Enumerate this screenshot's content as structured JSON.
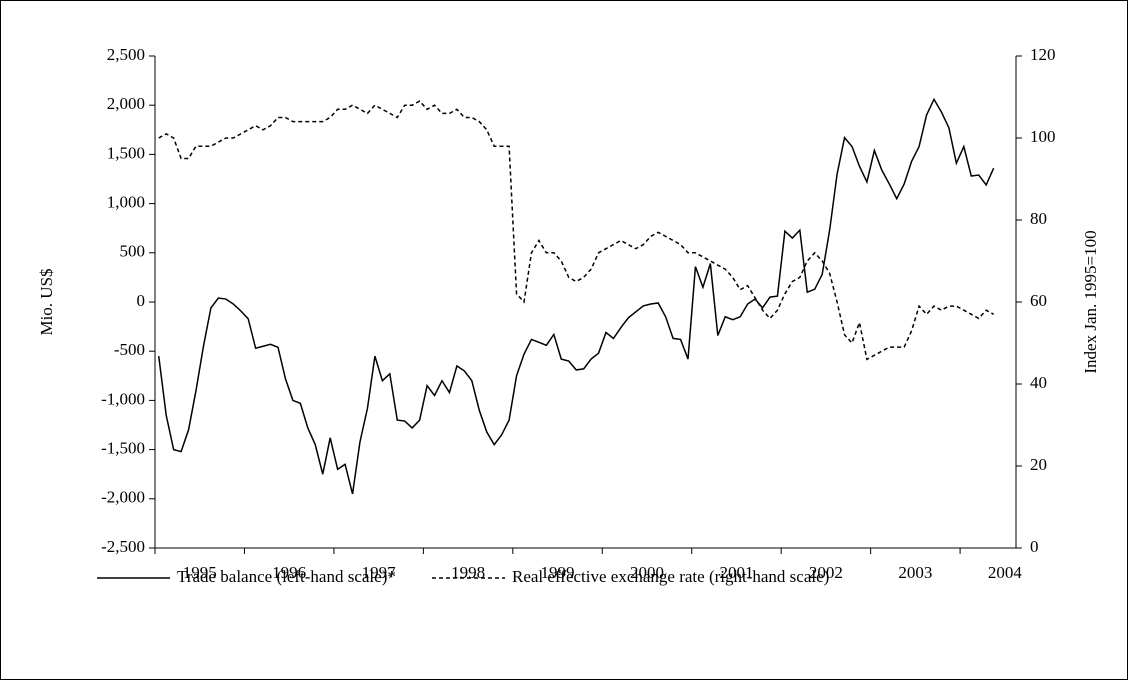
{
  "chart_data": {
    "type": "line",
    "y_label": "Mio. US$",
    "y2_label": "Index Jan. 1995=100",
    "categories": [
      "1995",
      null,
      null,
      null,
      null,
      null,
      null,
      null,
      null,
      null,
      null,
      null,
      "1996",
      null,
      null,
      null,
      null,
      null,
      null,
      null,
      null,
      null,
      null,
      null,
      "1997",
      null,
      null,
      null,
      null,
      null,
      null,
      null,
      null,
      null,
      null,
      null,
      "1998",
      null,
      null,
      null,
      null,
      null,
      null,
      null,
      null,
      null,
      null,
      null,
      "1999",
      null,
      null,
      null,
      null,
      null,
      null,
      null,
      null,
      null,
      null,
      null,
      "2000",
      null,
      null,
      null,
      null,
      null,
      null,
      null,
      null,
      null,
      null,
      null,
      "2001",
      null,
      null,
      null,
      null,
      null,
      null,
      null,
      null,
      null,
      null,
      null,
      "2002",
      null,
      null,
      null,
      null,
      null,
      null,
      null,
      null,
      null,
      null,
      null,
      "2003",
      null,
      null,
      null,
      null,
      null,
      null,
      null,
      null,
      null,
      null,
      null,
      "2004",
      null,
      null,
      null,
      null
    ],
    "series": [
      {
        "name": "Trade balance (left-hand scale)*",
        "color": "#000000",
        "linestyle": "solid",
        "axis": "y",
        "values": [
          -550,
          -1150,
          -1500,
          -1520,
          -1300,
          -900,
          -450,
          -60,
          40,
          30,
          -20,
          -90,
          -170,
          -470,
          -450,
          -430,
          -460,
          -780,
          -1000,
          -1030,
          -1280,
          -1450,
          -1750,
          -1380,
          -1700,
          -1650,
          -1950,
          -1420,
          -1080,
          -550,
          -800,
          -730,
          -1200,
          -1210,
          -1280,
          -1200,
          -850,
          -950,
          -800,
          -920,
          -650,
          -700,
          -800,
          -1100,
          -1320,
          -1450,
          -1350,
          -1200,
          -750,
          -530,
          -380,
          -410,
          -440,
          -330,
          -580,
          -600,
          -690,
          -680,
          -580,
          -520,
          -310,
          -370,
          -260,
          -160,
          -100,
          -40,
          -20,
          -10,
          -150,
          -370,
          -380,
          -580,
          360,
          150,
          390,
          -340,
          -150,
          -180,
          -150,
          -20,
          30,
          -60,
          50,
          60,
          720,
          650,
          730,
          100,
          130,
          280,
          730,
          1300,
          1670,
          1580,
          1380,
          1220,
          1540,
          1340,
          1200,
          1050,
          1200,
          1430,
          1580,
          1900,
          2060,
          1930,
          1770,
          1410,
          1580,
          1280,
          1290,
          1190,
          1360
        ]
      },
      {
        "name": "Real effective exchange rate (right-hand scale)",
        "color": "#000000",
        "linestyle": "dashed",
        "axis": "y2",
        "values": [
          100,
          101,
          100,
          95,
          95,
          98,
          98,
          98,
          99,
          100,
          100,
          101,
          102,
          103,
          102,
          103,
          105,
          105,
          104,
          104,
          104,
          104,
          104,
          105,
          107,
          107,
          108,
          107,
          106,
          108,
          107,
          106,
          105,
          108,
          108,
          109,
          107,
          108,
          106,
          106,
          107,
          105,
          105,
          104,
          102,
          98,
          98,
          98,
          62,
          60,
          72,
          75,
          72,
          72,
          70,
          66,
          65,
          66,
          68,
          72,
          73,
          74,
          75,
          74,
          73,
          74,
          76,
          77,
          76,
          75,
          74,
          72,
          72,
          71,
          70,
          69,
          68,
          66,
          63,
          64,
          61,
          58,
          56,
          58,
          62,
          65,
          66,
          70,
          72,
          70,
          67,
          60,
          52,
          50,
          55,
          46,
          47,
          48,
          49,
          49,
          49,
          53,
          59,
          57,
          59,
          58,
          59,
          59,
          58,
          57,
          56,
          58,
          57
        ]
      }
    ],
    "ylim": [
      -2500,
      2500
    ],
    "yticks": [
      {
        "value": -2500,
        "label": "-2,500"
      },
      {
        "value": -2000,
        "label": "-2,000"
      },
      {
        "value": -1500,
        "label": "-1,500"
      },
      {
        "value": -1000,
        "label": "-1,000"
      },
      -500,
      0,
      500,
      {
        "value": 1000,
        "label": "1,000"
      },
      {
        "value": 1500,
        "label": "1,500"
      },
      {
        "value": 2000,
        "label": "2,000"
      },
      {
        "value": 2500,
        "label": "2,500"
      }
    ],
    "y2lim": [
      0,
      120
    ],
    "y2ticks": [
      0,
      20,
      40,
      60,
      80,
      100,
      120
    ],
    "grid": false
  }
}
